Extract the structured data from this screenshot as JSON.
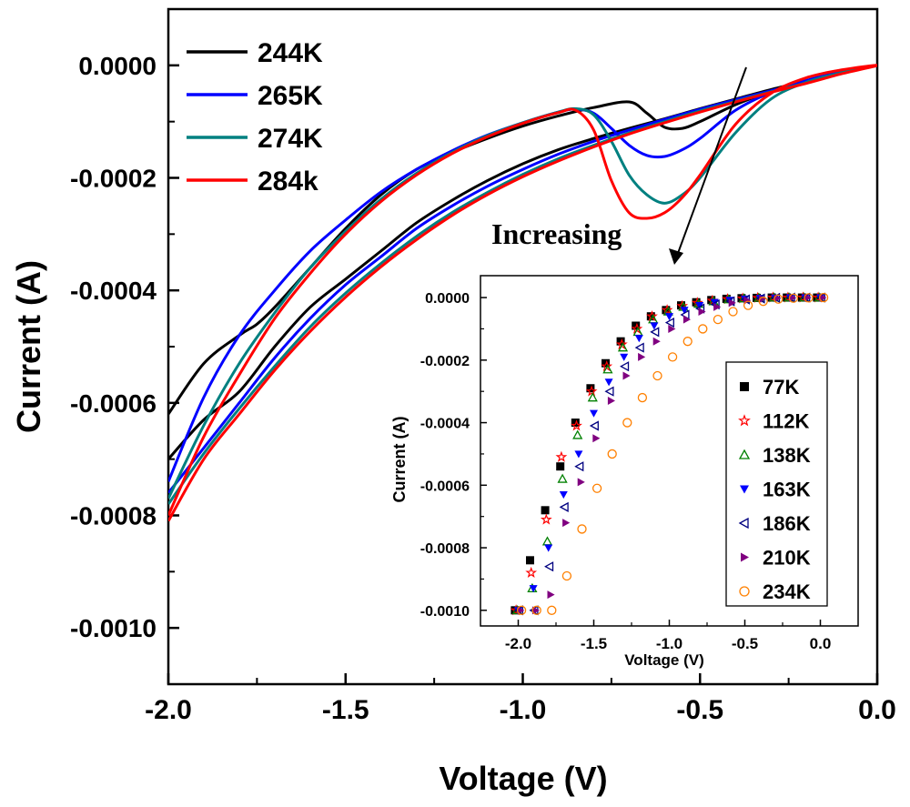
{
  "chart_data": [
    {
      "type": "line",
      "xlabel": "Voltage (V)",
      "ylabel": "Current (A)",
      "xlim": [
        -2.0,
        0.0
      ],
      "ylim": [
        -0.0011,
        0.0001
      ],
      "xticks": [
        "-2.0",
        "-1.5",
        "-1.0",
        "-0.5",
        "0.0"
      ],
      "xtick_values": [
        -2.0,
        -1.5,
        -1.0,
        -0.5,
        0.0
      ],
      "yticks": [
        "0.0000",
        "-0.0002",
        "-0.0004",
        "-0.0006",
        "-0.0008",
        "-0.0010"
      ],
      "ytick_values": [
        0.0,
        -0.0002,
        -0.0004,
        -0.0006,
        -0.0008,
        -0.001
      ],
      "legend_position": "top-left",
      "annotation": "Increasing",
      "series": [
        {
          "name": "244K",
          "color": "#000000",
          "x": [
            -2.0,
            -1.9,
            -1.8,
            -1.75,
            -1.7,
            -1.6,
            -1.5,
            -1.4,
            -1.3,
            -1.2,
            -1.1,
            -1.0,
            -0.9,
            -0.8,
            -0.7,
            -0.65,
            -0.6,
            -0.55,
            -0.5,
            -0.4,
            -0.3,
            -0.2,
            -0.1,
            0.0,
            -0.1,
            -0.2,
            -0.3,
            -0.4,
            -0.5,
            -0.6,
            -0.7,
            -0.8,
            -0.9,
            -1.0,
            -1.1,
            -1.2,
            -1.3,
            -1.4,
            -1.5,
            -1.6,
            -1.7,
            -1.8,
            -1.9,
            -2.0
          ],
          "y": [
            -0.00062,
            -0.00053,
            -0.00048,
            -0.00046,
            -0.00043,
            -0.00036,
            -0.00029,
            -0.00023,
            -0.000185,
            -0.000155,
            -0.00013,
            -0.000108,
            -9e-05,
            -7.5e-05,
            -6.5e-05,
            -8.5e-05,
            -0.00011,
            -0.000112,
            -0.0001,
            -7e-05,
            -4.6e-05,
            -2.7e-05,
            -1.2e-05,
            0.0,
            -1.2e-05,
            -2.8e-05,
            -4.3e-05,
            -6e-05,
            -7.7e-05,
            -9.5e-05,
            -0.000112,
            -0.00013,
            -0.00015,
            -0.000175,
            -0.000205,
            -0.00024,
            -0.00028,
            -0.00033,
            -0.00038,
            -0.00043,
            -0.0005,
            -0.00058,
            -0.00063,
            -0.0007
          ]
        },
        {
          "name": "265K",
          "color": "#0000ff",
          "x": [
            -2.0,
            -1.9,
            -1.8,
            -1.7,
            -1.6,
            -1.5,
            -1.4,
            -1.3,
            -1.2,
            -1.1,
            -1.0,
            -0.9,
            -0.85,
            -0.8,
            -0.75,
            -0.7,
            -0.65,
            -0.6,
            -0.55,
            -0.5,
            -0.4,
            -0.3,
            -0.2,
            -0.1,
            0.0,
            -0.1,
            -0.2,
            -0.3,
            -0.4,
            -0.5,
            -0.6,
            -0.7,
            -0.8,
            -0.9,
            -1.0,
            -1.1,
            -1.2,
            -1.3,
            -1.4,
            -1.5,
            -1.6,
            -1.7,
            -1.8,
            -1.9,
            -2.0
          ],
          "y": [
            -0.00074,
            -0.00059,
            -0.00048,
            -0.0004,
            -0.00033,
            -0.000275,
            -0.000225,
            -0.000185,
            -0.000152,
            -0.000124,
            -0.000102,
            -8.3e-05,
            -7.8e-05,
            -8.5e-05,
            -0.000112,
            -0.000142,
            -0.00016,
            -0.000162,
            -0.00015,
            -0.00013,
            -8e-05,
            -4.8e-05,
            -2.7e-05,
            -1.2e-05,
            0.0,
            -1.3e-05,
            -3e-05,
            -4.5e-05,
            -6.1e-05,
            -7.8e-05,
            -9.6e-05,
            -0.000115,
            -0.000135,
            -0.000158,
            -0.000185,
            -0.000215,
            -0.00025,
            -0.00029,
            -0.00034,
            -0.00039,
            -0.00045,
            -0.00052,
            -0.0006,
            -0.00068,
            -0.00076
          ]
        },
        {
          "name": "274K",
          "color": "#008080",
          "x": [
            -2.0,
            -1.9,
            -1.8,
            -1.7,
            -1.6,
            -1.5,
            -1.4,
            -1.3,
            -1.2,
            -1.1,
            -1.0,
            -0.9,
            -0.85,
            -0.8,
            -0.75,
            -0.7,
            -0.65,
            -0.6,
            -0.55,
            -0.5,
            -0.4,
            -0.3,
            -0.2,
            -0.1,
            0.0,
            -0.1,
            -0.2,
            -0.3,
            -0.4,
            -0.5,
            -0.6,
            -0.7,
            -0.8,
            -0.9,
            -1.0,
            -1.1,
            -1.2,
            -1.3,
            -1.4,
            -1.5,
            -1.6,
            -1.7,
            -1.8,
            -1.9,
            -2.0
          ],
          "y": [
            -0.00077,
            -0.00064,
            -0.00053,
            -0.00044,
            -0.00036,
            -0.000295,
            -0.000238,
            -0.000192,
            -0.000155,
            -0.000125,
            -0.000102,
            -8.3e-05,
            -7.7e-05,
            -8.8e-05,
            -0.000135,
            -0.000195,
            -0.00023,
            -0.000245,
            -0.00023,
            -0.0002,
            -0.00012,
            -6e-05,
            -3e-05,
            -1.3e-05,
            0.0,
            -1.4e-05,
            -3.1e-05,
            -4.7e-05,
            -6.4e-05,
            -8.1e-05,
            -0.0001,
            -0.00012,
            -0.000142,
            -0.000166,
            -0.000194,
            -0.000226,
            -0.000262,
            -0.000304,
            -0.000352,
            -0.000405,
            -0.000465,
            -0.000535,
            -0.00061,
            -0.00069,
            -0.00078
          ]
        },
        {
          "name": "284k",
          "color": "#ff0000",
          "x": [
            -2.0,
            -1.9,
            -1.8,
            -1.7,
            -1.6,
            -1.5,
            -1.4,
            -1.3,
            -1.2,
            -1.1,
            -1.0,
            -0.9,
            -0.85,
            -0.8,
            -0.75,
            -0.7,
            -0.65,
            -0.6,
            -0.55,
            -0.5,
            -0.4,
            -0.3,
            -0.2,
            -0.1,
            0.0,
            -0.1,
            -0.2,
            -0.3,
            -0.4,
            -0.5,
            -0.6,
            -0.7,
            -0.8,
            -0.9,
            -1.0,
            -1.1,
            -1.2,
            -1.3,
            -1.4,
            -1.5,
            -1.6,
            -1.7,
            -1.8,
            -1.9,
            -2.0
          ],
          "y": [
            -0.0008,
            -0.00066,
            -0.00055,
            -0.00045,
            -0.00037,
            -0.0003,
            -0.000242,
            -0.000195,
            -0.000157,
            -0.000127,
            -0.000103,
            -8.4e-05,
            -8e-05,
            -0.000115,
            -0.000205,
            -0.000262,
            -0.000272,
            -0.000262,
            -0.000235,
            -0.000195,
            -0.000105,
            -5e-05,
            -2.2e-05,
            -8e-06,
            0.0,
            -1.5e-05,
            -3.2e-05,
            -4.8e-05,
            -6.5e-05,
            -8.3e-05,
            -0.000102,
            -0.000122,
            -0.000145,
            -0.00017,
            -0.000198,
            -0.00023,
            -0.000267,
            -0.00031,
            -0.000358,
            -0.000412,
            -0.000473,
            -0.000542,
            -0.00062,
            -0.0007,
            -0.00081
          ]
        }
      ]
    },
    {
      "type": "scatter",
      "xlabel": "Voltage (V)",
      "ylabel": "Current (A)",
      "xlim": [
        -2.25,
        0.25
      ],
      "ylim": [
        -0.00105,
        7e-05
      ],
      "xticks": [
        "-2.0",
        "-1.5",
        "-1.0",
        "-0.5",
        "0.0"
      ],
      "xtick_values": [
        -2.0,
        -1.5,
        -1.0,
        -0.5,
        0.0
      ],
      "yticks": [
        "0.0000",
        "-0.0002",
        "-0.0004",
        "-0.0006",
        "-0.0008",
        "-0.0010"
      ],
      "ytick_values": [
        0.0,
        -0.0002,
        -0.0004,
        -0.0006,
        -0.0008,
        -0.001
      ],
      "legend_position": "right",
      "series": [
        {
          "name": "77K",
          "color": "#000000",
          "marker": "square-filled",
          "x": [
            -2.0,
            -1.9,
            -1.8,
            -1.7,
            -1.6,
            -1.5,
            -1.4,
            -1.3,
            -1.2,
            -1.1,
            -1.0,
            -0.9,
            -0.8,
            -0.7,
            -0.6,
            -0.5,
            -0.4,
            -0.3,
            -0.2,
            -0.1,
            0.0
          ],
          "y": [
            -0.001,
            -0.00084,
            -0.00068,
            -0.00054,
            -0.0004,
            -0.00029,
            -0.00021,
            -0.00014,
            -9e-05,
            -6e-05,
            -4e-05,
            -2.5e-05,
            -1.5e-05,
            -8e-06,
            -4e-06,
            -2e-06,
            -1e-06,
            0.0,
            0.0,
            0.0,
            0.0
          ]
        },
        {
          "name": "112K",
          "color": "#ff0000",
          "marker": "star-open",
          "x": [
            -2.0,
            -1.9,
            -1.8,
            -1.7,
            -1.6,
            -1.5,
            -1.4,
            -1.3,
            -1.2,
            -1.1,
            -1.0,
            -0.9,
            -0.8,
            -0.7,
            -0.6,
            -0.5,
            -0.4,
            -0.3,
            -0.2,
            -0.1,
            0.0
          ],
          "y": [
            -0.001,
            -0.00088,
            -0.00071,
            -0.00051,
            -0.00041,
            -0.0003,
            -0.00022,
            -0.00015,
            -0.0001,
            -6e-05,
            -4e-05,
            -2.7e-05,
            -1.7e-05,
            -1e-05,
            -5e-06,
            -3e-06,
            -1e-06,
            0.0,
            0.0,
            0.0,
            0.0
          ]
        },
        {
          "name": "138K",
          "color": "#008000",
          "marker": "triangle-up-open",
          "x": [
            -2.0,
            -1.9,
            -1.8,
            -1.7,
            -1.6,
            -1.5,
            -1.4,
            -1.3,
            -1.2,
            -1.1,
            -1.0,
            -0.9,
            -0.8,
            -0.7,
            -0.6,
            -0.5,
            -0.4,
            -0.3,
            -0.2,
            -0.1,
            0.0
          ],
          "y": [
            -0.001,
            -0.00093,
            -0.00078,
            -0.00058,
            -0.00044,
            -0.00032,
            -0.00023,
            -0.00016,
            -0.00011,
            -7e-05,
            -4.5e-05,
            -3e-05,
            -2e-05,
            -1.2e-05,
            -6e-06,
            -3e-06,
            -1e-06,
            0.0,
            0.0,
            0.0,
            0.0
          ]
        },
        {
          "name": "163K",
          "color": "#0000ff",
          "marker": "triangle-down-filled",
          "x": [
            -2.0,
            -1.9,
            -1.8,
            -1.7,
            -1.6,
            -1.5,
            -1.4,
            -1.3,
            -1.2,
            -1.1,
            -1.0,
            -0.9,
            -0.8,
            -0.7,
            -0.6,
            -0.5,
            -0.4,
            -0.3,
            -0.2,
            -0.1,
            0.0
          ],
          "y": [
            -0.001,
            -0.00093,
            -0.0008,
            -0.00063,
            -0.0005,
            -0.00037,
            -0.00027,
            -0.00019,
            -0.00013,
            -9e-05,
            -6e-05,
            -4e-05,
            -2.5e-05,
            -1.5e-05,
            -8e-06,
            -4e-06,
            -2e-06,
            -1e-06,
            0.0,
            0.0,
            0.0
          ]
        },
        {
          "name": "186K",
          "color": "#000080",
          "marker": "triangle-left-open",
          "x": [
            -2.0,
            -1.9,
            -1.8,
            -1.7,
            -1.6,
            -1.5,
            -1.4,
            -1.3,
            -1.2,
            -1.1,
            -1.0,
            -0.9,
            -0.8,
            -0.7,
            -0.6,
            -0.5,
            -0.4,
            -0.3,
            -0.2,
            -0.1,
            0.0
          ],
          "y": [
            -0.001,
            -0.001,
            -0.00086,
            -0.00067,
            -0.00054,
            -0.00041,
            -0.0003,
            -0.00022,
            -0.00016,
            -0.00011,
            -8e-05,
            -5.5e-05,
            -3.5e-05,
            -2.2e-05,
            -1.2e-05,
            -6e-06,
            -3e-06,
            -1e-06,
            0.0,
            0.0,
            0.0
          ]
        },
        {
          "name": "210K",
          "color": "#800080",
          "marker": "triangle-right-filled",
          "x": [
            -2.0,
            -1.9,
            -1.8,
            -1.7,
            -1.6,
            -1.5,
            -1.4,
            -1.3,
            -1.2,
            -1.1,
            -1.0,
            -0.9,
            -0.8,
            -0.7,
            -0.6,
            -0.5,
            -0.4,
            -0.3,
            -0.2,
            -0.1,
            0.0
          ],
          "y": [
            -0.001,
            -0.001,
            -0.00095,
            -0.00072,
            -0.00059,
            -0.00045,
            -0.00033,
            -0.00025,
            -0.00019,
            -0.00014,
            -0.0001,
            -7e-05,
            -4.5e-05,
            -3e-05,
            -1.7e-05,
            -9e-06,
            -4e-06,
            -2e-06,
            -1e-06,
            0.0,
            0.0
          ]
        },
        {
          "name": "234K",
          "color": "#ff8000",
          "marker": "circle-open",
          "x": [
            -2.0,
            -1.9,
            -1.8,
            -1.7,
            -1.6,
            -1.5,
            -1.4,
            -1.3,
            -1.2,
            -1.1,
            -1.0,
            -0.9,
            -0.8,
            -0.7,
            -0.6,
            -0.5,
            -0.4,
            -0.3,
            -0.2,
            -0.1,
            0.0
          ],
          "y": [
            -0.001,
            -0.001,
            -0.001,
            -0.00089,
            -0.00074,
            -0.00061,
            -0.0005,
            -0.0004,
            -0.00032,
            -0.00025,
            -0.00019,
            -0.00014,
            -0.0001,
            -7e-05,
            -4.5e-05,
            -2.5e-05,
            -1.2e-05,
            -5e-06,
            -2e-06,
            -1e-06,
            0.0
          ]
        }
      ]
    }
  ]
}
